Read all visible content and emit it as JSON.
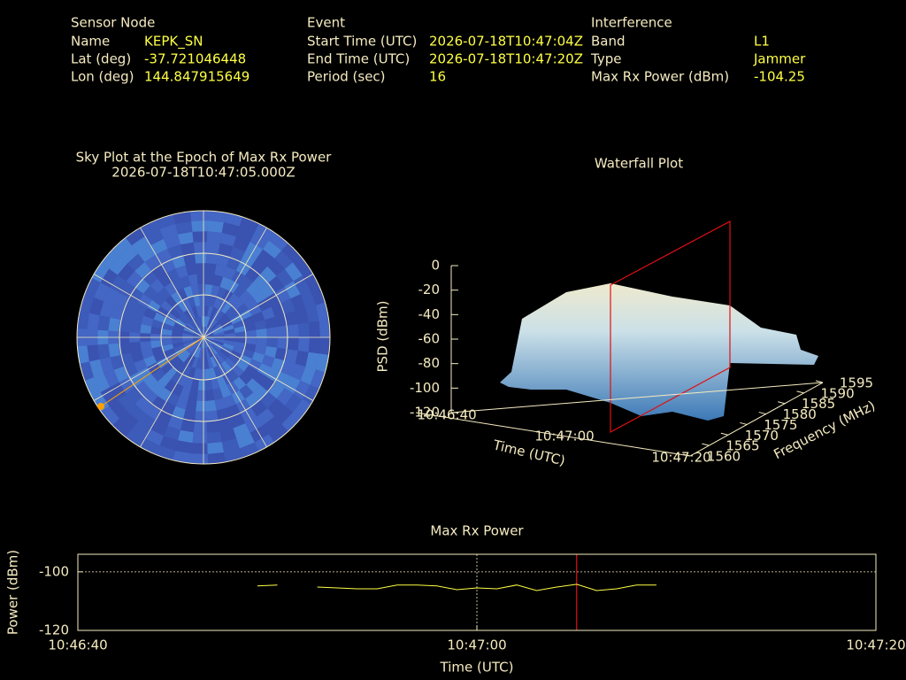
{
  "sensor_node": {
    "heading": "Sensor Node",
    "rows": [
      [
        "Name",
        "KEPK_SN"
      ],
      [
        "Lat (deg)",
        "-37.721046448"
      ],
      [
        "Lon (deg)",
        "144.847915649"
      ]
    ]
  },
  "event": {
    "heading": "Event",
    "rows": [
      [
        "Start Time (UTC)",
        "2026-07-18T10:47:04Z"
      ],
      [
        "End Time (UTC)",
        "2026-07-18T10:47:20Z"
      ],
      [
        "Period (sec)",
        "16"
      ]
    ]
  },
  "interference": {
    "heading": "Interference",
    "rows": [
      [
        "Band",
        "L1"
      ],
      [
        "Type",
        "Jammer"
      ],
      [
        "Max Rx Power (dBm)",
        "-104.25"
      ]
    ]
  },
  "sky_plot": {
    "title": "Sky Plot at the Epoch of Max Rx Power",
    "epoch": "2026-07-18T10:47:05.000Z"
  },
  "waterfall": {
    "title": "Waterfall Plot",
    "z_label": "PSD (dBm)",
    "x_label": "Time (UTC)",
    "y_label": "Frequency (MHz)",
    "zticks": [
      0,
      -20,
      -40,
      -60,
      -80,
      -100,
      -120
    ],
    "zlim": [
      -120,
      0
    ],
    "xticks": [
      "10:46:40",
      "10:47:00",
      "10:47:20"
    ],
    "yticks": [
      1560,
      1565,
      1570,
      1575,
      1580,
      1585,
      1590,
      1595
    ],
    "ylim": [
      1560,
      1595
    ]
  },
  "chart_data": {
    "type": "line",
    "title": "Max Rx Power",
    "x_label": "Time (UTC)",
    "y_label": "Power (dBm)",
    "x": [
      "10:46:49",
      "10:46:50",
      "10:46:51",
      "10:46:52",
      "10:46:53",
      "10:46:54",
      "10:46:55",
      "10:46:56",
      "10:46:57",
      "10:46:58",
      "10:46:59",
      "10:47:00",
      "10:47:01",
      "10:47:02",
      "10:47:03",
      "10:47:04",
      "10:47:05",
      "10:47:06",
      "10:47:07",
      "10:47:08",
      "10:47:09"
    ],
    "series": [
      {
        "name": "Max Rx Power",
        "color": "#ffff44",
        "values": [
          -104.8,
          -104.5,
          null,
          -105.2,
          -105.5,
          -105.8,
          -105.8,
          -104.5,
          -104.5,
          -104.8,
          -106.1,
          -105.5,
          -105.8,
          -104.5,
          -106.4,
          -105.2,
          -104.25,
          -106.4,
          -105.8,
          -104.5,
          -104.5
        ]
      }
    ],
    "xlim": [
      "10:46:40",
      "10:47:20"
    ],
    "xticks": [
      "10:46:40",
      "10:47:00",
      "10:47:20"
    ],
    "ylim": [
      -120,
      -94
    ],
    "yticks": [
      -100,
      -120
    ],
    "grid": true,
    "marker_x": "10:47:05",
    "marker_color": "#e01010"
  }
}
